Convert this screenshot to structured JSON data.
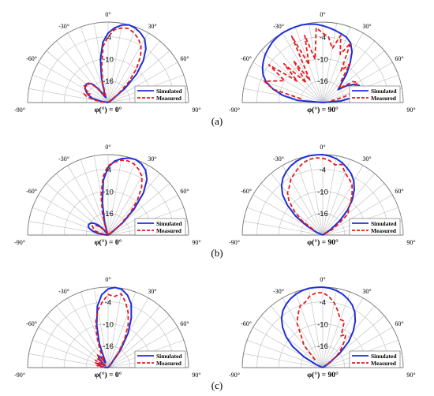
{
  "colors": {
    "simulated": "#1f2fd8",
    "measured": "#e8191c",
    "grid": "#bdbdbd",
    "frame": "#7a7a7a"
  },
  "panel_labels": [
    "(a)",
    "(b)",
    "(c)"
  ],
  "chart_data": [
    {
      "type": "polar-line",
      "panel": "(a)",
      "title": "φ(°) = 0°",
      "angle_ticks": [
        "-90°",
        "-60°",
        "-30°",
        "0°",
        "30°",
        "60°",
        "90°"
      ],
      "radial_ticks": [
        "-4",
        "-10",
        "-16"
      ],
      "rlim": [
        -22,
        0
      ],
      "grid": true,
      "legend": "bottom-right",
      "series": [
        {
          "name": "Simulated",
          "style": "solid",
          "theta": [
            -90,
            -85,
            -80,
            -75,
            -70,
            -65,
            -60,
            -55,
            -50,
            -45,
            -40,
            -35,
            -30,
            -25,
            -20,
            -15,
            -10,
            -5,
            0,
            5,
            10,
            15,
            20,
            25,
            30,
            35,
            40,
            45,
            50,
            55,
            60,
            65,
            70,
            75,
            80,
            85,
            90
          ],
          "r": [
            -22,
            -22,
            -20,
            -17.5,
            -16.5,
            -15.5,
            -14.8,
            -14.3,
            -14.2,
            -14.5,
            -15.5,
            -17.5,
            -20,
            -20.5,
            -19,
            -15,
            -10,
            -5.5,
            -3,
            -1.5,
            -0.5,
            0,
            -0.3,
            -1,
            -2,
            -4,
            -7,
            -11,
            -16,
            -21,
            -22,
            -22,
            -22,
            -22,
            -22,
            -22,
            -22
          ]
        },
        {
          "name": "Measured",
          "style": "dashed",
          "theta": [
            -85,
            -80,
            -75,
            -70,
            -65,
            -60,
            -55,
            -50,
            -45,
            -40,
            -35,
            -30,
            -25,
            -20,
            -15,
            -10,
            -5,
            0,
            5,
            10,
            15,
            20,
            25,
            30,
            35,
            40,
            45,
            50,
            55
          ],
          "r": [
            -21,
            -18.5,
            -16,
            -15,
            -16.5,
            -15,
            -14,
            -15,
            -14.5,
            -16,
            -18,
            -19.5,
            -19,
            -20,
            -16,
            -12,
            -6.5,
            -4,
            -2,
            -1.3,
            -1,
            -1.6,
            -2.6,
            -4,
            -6.5,
            -10,
            -14,
            -18.5,
            -22
          ]
        }
      ]
    },
    {
      "type": "polar-line",
      "panel": "(a)",
      "title": "φ(°) = 90°",
      "angle_ticks": [
        "-90°",
        "-60°",
        "-30°",
        "0°",
        "30°",
        "60°",
        "90°"
      ],
      "radial_ticks": [
        "-4",
        "-10",
        "-16"
      ],
      "rlim": [
        -22,
        0
      ],
      "grid": true,
      "legend": "bottom-right",
      "series": [
        {
          "name": "Simulated",
          "style": "solid",
          "theta": [
            -90,
            -85,
            -80,
            -75,
            -70,
            -65,
            -60,
            -55,
            -50,
            -45,
            -40,
            -35,
            -30,
            -25,
            -20,
            -15,
            -10,
            -5,
            0,
            5,
            10,
            15,
            20,
            25,
            30,
            35,
            40,
            45,
            50,
            55,
            60,
            65,
            70,
            75,
            80,
            85,
            90
          ],
          "r": [
            -22,
            -15,
            -11,
            -8,
            -5.5,
            -4,
            -3,
            -2.2,
            -1.5,
            -1,
            -0.5,
            -0.2,
            0,
            0,
            0,
            0,
            -0.2,
            -0.5,
            -1,
            -1.5,
            -2,
            -2.5,
            -3,
            -4,
            -6,
            -9,
            -12,
            -15,
            -16.5,
            -14,
            -12,
            -11,
            -11,
            -11.5,
            -13,
            -17,
            -22
          ]
        },
        {
          "name": "Measured",
          "style": "dashed",
          "theta": [
            -80,
            -75,
            -70,
            -65,
            -60,
            -55,
            -50,
            -45,
            -40,
            -35,
            -30,
            -25,
            -20,
            -15,
            -10,
            -5,
            0,
            5,
            10,
            15,
            20,
            25,
            30,
            35,
            40,
            45,
            50,
            55,
            60,
            65,
            70,
            75,
            80
          ],
          "r": [
            -16,
            -8,
            -5,
            -8,
            -10,
            -4,
            -13,
            -7,
            -15,
            -8,
            -15,
            -2,
            -11,
            -3,
            -10,
            -1.5,
            -3,
            -4,
            -7,
            -3,
            -8,
            -4,
            -12,
            -9,
            -14,
            -15,
            -16,
            -12,
            -11,
            -13,
            -10,
            -16,
            -20
          ]
        }
      ]
    },
    {
      "type": "polar-line",
      "panel": "(b)",
      "title": "φ(°) = 0°",
      "angle_ticks": [
        "-90°",
        "-60°",
        "-30°",
        "0°",
        "30°",
        "60°",
        "90°"
      ],
      "radial_ticks": [
        "-4",
        "-10",
        "-16"
      ],
      "rlim": [
        -22,
        0
      ],
      "grid": true,
      "legend": "bottom-right",
      "series": [
        {
          "name": "Simulated",
          "style": "solid",
          "theta": [
            -90,
            -85,
            -80,
            -75,
            -70,
            -65,
            -60,
            -55,
            -50,
            -45,
            -40,
            -35,
            -30,
            -25,
            -20,
            -15,
            -10,
            -5,
            0,
            5,
            10,
            15,
            20,
            25,
            30,
            35,
            40,
            45,
            50,
            55,
            60,
            65,
            70,
            75,
            80,
            85,
            90
          ],
          "r": [
            -22,
            -21,
            -19,
            -17.5,
            -16.5,
            -16,
            -16,
            -16.3,
            -17,
            -18,
            -19.5,
            -21,
            -22,
            -22,
            -21,
            -18,
            -13,
            -7,
            -3.5,
            -1.7,
            -0.8,
            -0.2,
            0,
            -0.5,
            -1.5,
            -3.5,
            -7,
            -12,
            -17,
            -21,
            -22,
            -22,
            -22,
            -22,
            -22,
            -22,
            -22
          ]
        },
        {
          "name": "Measured",
          "style": "dashed",
          "theta": [
            -80,
            -75,
            -70,
            -65,
            -60,
            -55,
            -50,
            -45,
            -40,
            -35,
            -30,
            -20,
            -15,
            -10,
            -5,
            0,
            5,
            10,
            15,
            20,
            25,
            30,
            35,
            40,
            45,
            50,
            55
          ],
          "r": [
            -21,
            -19,
            -18,
            -17.5,
            -17,
            -17.5,
            -18,
            -19,
            -20,
            -21,
            -22,
            -20,
            -16,
            -11,
            -6,
            -3,
            -2,
            -1.2,
            -1,
            -1.3,
            -2.2,
            -3.5,
            -6,
            -9.5,
            -13.5,
            -18,
            -22
          ]
        }
      ]
    },
    {
      "type": "polar-line",
      "panel": "(b)",
      "title": "φ(°) = 90°",
      "angle_ticks": [
        "-90°",
        "-60°",
        "-30°",
        "0°",
        "30°",
        "60°",
        "90°"
      ],
      "radial_ticks": [
        "-4",
        "-10",
        "-16"
      ],
      "rlim": [
        -22,
        0
      ],
      "grid": true,
      "legend": "bottom-right",
      "series": [
        {
          "name": "Simulated",
          "style": "solid",
          "theta": [
            -90,
            -85,
            -80,
            -75,
            -70,
            -65,
            -60,
            -55,
            -50,
            -45,
            -40,
            -35,
            -30,
            -25,
            -20,
            -15,
            -10,
            -5,
            0,
            5,
            10,
            15,
            20,
            25,
            30,
            35,
            40,
            45,
            50,
            55,
            60,
            65,
            70,
            75,
            80,
            85,
            90
          ],
          "r": [
            -22,
            -22,
            -22,
            -22,
            -22,
            -20,
            -17,
            -13,
            -9.5,
            -6.5,
            -4.5,
            -3,
            -2,
            -1.2,
            -0.6,
            -0.2,
            0,
            0,
            0,
            -0.3,
            -0.8,
            -1.5,
            -2.5,
            -3.5,
            -5,
            -7,
            -9.5,
            -12.5,
            -16,
            -19.5,
            -22,
            -22,
            -22,
            -22,
            -22,
            -22,
            -22
          ]
        },
        {
          "name": "Measured",
          "style": "dashed",
          "theta": [
            -60,
            -55,
            -50,
            -45,
            -40,
            -35,
            -30,
            -25,
            -20,
            -15,
            -10,
            -5,
            0,
            5,
            10,
            15,
            20,
            25,
            30,
            35,
            40,
            45,
            50,
            55,
            60,
            65
          ],
          "r": [
            -19,
            -15,
            -12,
            -9,
            -7,
            -6,
            -4.5,
            -3.5,
            -2.5,
            -1.5,
            -1,
            -0.8,
            -1,
            -1.5,
            -2.5,
            -2,
            -4,
            -5,
            -6,
            -8,
            -10,
            -12,
            -13,
            -17,
            -19,
            -22
          ]
        }
      ]
    },
    {
      "type": "polar-line",
      "panel": "(c)",
      "title": "φ(°) = 0°",
      "angle_ticks": [
        "-90°",
        "-60°",
        "-30°",
        "0°",
        "30°",
        "60°",
        "90°"
      ],
      "radial_ticks": [
        "-4",
        "-10",
        "-16"
      ],
      "rlim": [
        -22,
        0
      ],
      "grid": true,
      "legend": "bottom-right",
      "series": [
        {
          "name": "Simulated",
          "style": "solid",
          "theta": [
            -90,
            -85,
            -80,
            -75,
            -70,
            -65,
            -60,
            -55,
            -50,
            -45,
            -40,
            -35,
            -30,
            -25,
            -20,
            -15,
            -10,
            -5,
            0,
            5,
            10,
            15,
            20,
            25,
            30,
            35,
            40,
            45,
            50,
            55,
            60,
            65,
            70,
            75,
            80,
            85,
            90
          ],
          "r": [
            -22,
            -21,
            -20,
            -19.5,
            -19.2,
            -19.5,
            -20.5,
            -21,
            -20,
            -18.5,
            -17.8,
            -18.5,
            -20.5,
            -20,
            -15,
            -10,
            -5,
            -2,
            -0.5,
            0,
            -0.3,
            -1.5,
            -3.5,
            -7,
            -11,
            -16,
            -21,
            -22,
            -22,
            -22,
            -22,
            -22,
            -22,
            -22,
            -22,
            -22,
            -22
          ]
        },
        {
          "name": "Measured",
          "style": "dashed",
          "theta": [
            -85,
            -80,
            -75,
            -70,
            -65,
            -60,
            -55,
            -50,
            -45,
            -40,
            -35,
            -30,
            -25,
            -20,
            -15,
            -10,
            -5,
            0,
            5,
            10,
            15,
            20,
            25,
            30,
            35,
            40
          ],
          "r": [
            -21,
            -19,
            -20,
            -18,
            -20,
            -18,
            -21,
            -18,
            -19,
            -17.5,
            -19,
            -20,
            -17,
            -13,
            -9,
            -6,
            -4,
            -2,
            -2.5,
            -1.5,
            -3.5,
            -6,
            -9,
            -13,
            -17,
            -22
          ]
        }
      ]
    },
    {
      "type": "polar-line",
      "panel": "(c)",
      "title": "φ(°) = 90°",
      "angle_ticks": [
        "-90°",
        "-60°",
        "-30°",
        "0°",
        "30°",
        "60°",
        "90°"
      ],
      "radial_ticks": [
        "-4",
        "-10",
        "-16"
      ],
      "rlim": [
        -22,
        0
      ],
      "grid": true,
      "legend": "bottom-right",
      "series": [
        {
          "name": "Simulated",
          "style": "solid",
          "theta": [
            -90,
            -85,
            -80,
            -75,
            -70,
            -65,
            -60,
            -55,
            -50,
            -45,
            -40,
            -35,
            -30,
            -25,
            -20,
            -15,
            -10,
            -5,
            0,
            5,
            10,
            15,
            20,
            25,
            30,
            35,
            40,
            45,
            50,
            55,
            60,
            65,
            70,
            75,
            80,
            85,
            90
          ],
          "r": [
            -22,
            -22,
            -22,
            -22,
            -22,
            -20,
            -16,
            -12,
            -9,
            -6.5,
            -4.5,
            -3,
            -2,
            -1.2,
            -0.6,
            -0.2,
            0,
            0,
            0,
            -0.2,
            -0.6,
            -1.2,
            -2,
            -3,
            -4.5,
            -6.5,
            -9,
            -12,
            -16,
            -20,
            -22,
            -22,
            -22,
            -22,
            -22,
            -22,
            -22
          ]
        },
        {
          "name": "Measured",
          "style": "dashed",
          "theta": [
            -45,
            -40,
            -35,
            -30,
            -25,
            -20,
            -15,
            -10,
            -5,
            0,
            5,
            10,
            15,
            20,
            25,
            30,
            35,
            40,
            45,
            50,
            55
          ],
          "r": [
            -19,
            -14,
            -12,
            -8,
            -6,
            -4,
            -3.5,
            -2,
            -1.5,
            -1.5,
            -2.5,
            -4,
            -6,
            -8,
            -8,
            -12,
            -11,
            -13,
            -15,
            -17,
            -21
          ]
        }
      ]
    }
  ]
}
